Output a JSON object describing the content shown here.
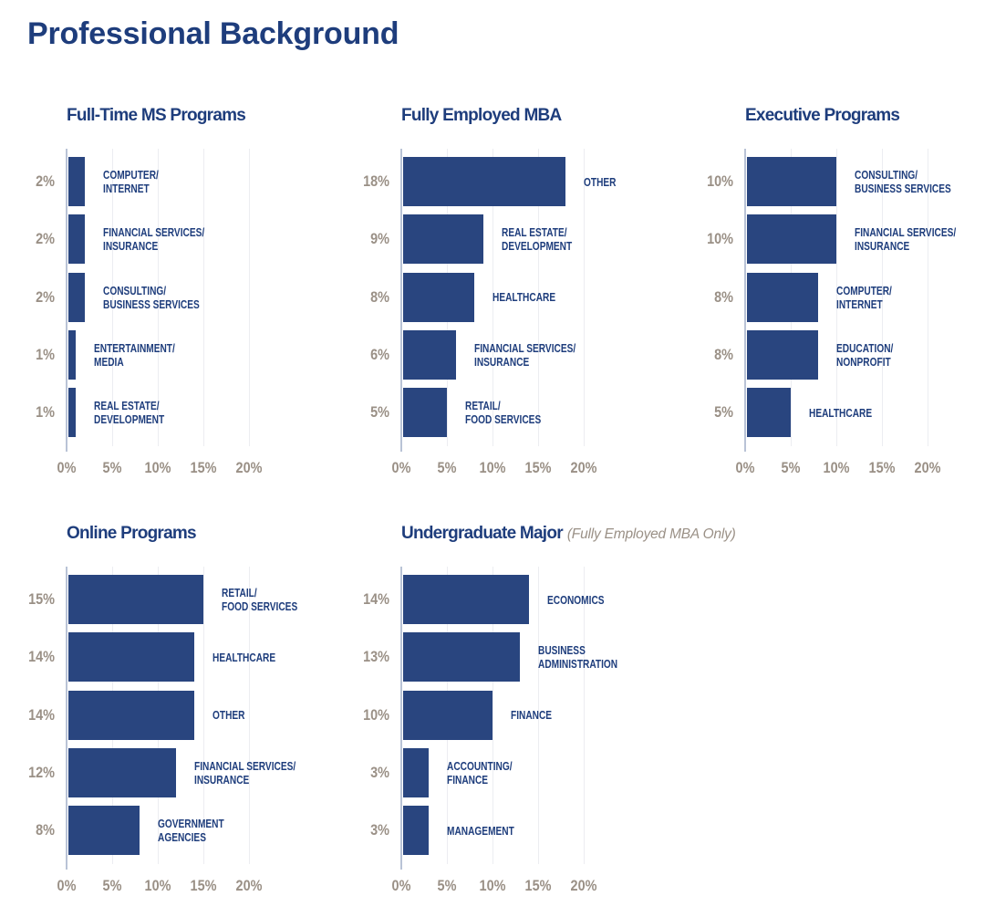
{
  "page_title": "Professional Background",
  "colors": {
    "bar_navy": "#29457f",
    "heading_blue": "#1e3d7c",
    "label_taupe": "#9a9086",
    "axis_line": "#b9c3d6",
    "gridline": "#ecedf1"
  },
  "chart_data": [
    {
      "type": "bar",
      "orientation": "horizontal",
      "title": "Full-Time MS Programs",
      "subtitle": "",
      "categories": [
        [
          "COMPUTER/",
          "INTERNET"
        ],
        [
          "FINANCIAL SERVICES/",
          "INSURANCE"
        ],
        [
          "CONSULTING/",
          "BUSINESS SERVICES"
        ],
        [
          "ENTERTAINMENT/",
          "MEDIA"
        ],
        [
          "REAL ESTATE/",
          "DEVELOPMENT"
        ]
      ],
      "values": [
        2,
        2,
        2,
        1,
        1
      ],
      "value_labels": [
        "2%",
        "2%",
        "2%",
        "1%",
        "1%"
      ],
      "xlim": [
        0,
        20
      ],
      "x_tick_labels": [
        "0%",
        "5%",
        "10%",
        "15%",
        "20%"
      ],
      "grid": true
    },
    {
      "type": "bar",
      "orientation": "horizontal",
      "title": "Fully Employed MBA",
      "subtitle": "",
      "categories": [
        [
          "OTHER"
        ],
        [
          "REAL ESTATE/",
          "DEVELOPMENT"
        ],
        [
          "HEALTHCARE"
        ],
        [
          "FINANCIAL SERVICES/",
          "INSURANCE"
        ],
        [
          "RETAIL/",
          "FOOD SERVICES"
        ]
      ],
      "values": [
        18,
        9,
        8,
        6,
        5
      ],
      "value_labels": [
        "18%",
        "9%",
        "8%",
        "6%",
        "5%"
      ],
      "xlim": [
        0,
        20
      ],
      "x_tick_labels": [
        "0%",
        "5%",
        "10%",
        "15%",
        "20%"
      ],
      "grid": true
    },
    {
      "type": "bar",
      "orientation": "horizontal",
      "title": "Executive Programs",
      "subtitle": "",
      "categories": [
        [
          "CONSULTING/",
          "BUSINESS SERVICES"
        ],
        [
          "FINANCIAL SERVICES/",
          "INSURANCE"
        ],
        [
          "COMPUTER/",
          "INTERNET"
        ],
        [
          "EDUCATION/",
          "NONPROFIT"
        ],
        [
          "HEALTHCARE"
        ]
      ],
      "values": [
        10,
        10,
        8,
        8,
        5
      ],
      "value_labels": [
        "10%",
        "10%",
        "8%",
        "8%",
        "5%"
      ],
      "xlim": [
        0,
        20
      ],
      "x_tick_labels": [
        "0%",
        "5%",
        "10%",
        "15%",
        "20%"
      ],
      "grid": true
    },
    {
      "type": "bar",
      "orientation": "horizontal",
      "title": "Online Programs",
      "subtitle": "",
      "categories": [
        [
          "RETAIL/",
          "FOOD SERVICES"
        ],
        [
          "HEALTHCARE"
        ],
        [
          "OTHER"
        ],
        [
          "FINANCIAL SERVICES/",
          "INSURANCE"
        ],
        [
          "GOVERNMENT",
          "AGENCIES"
        ]
      ],
      "values": [
        15,
        14,
        14,
        12,
        8
      ],
      "value_labels": [
        "15%",
        "14%",
        "14%",
        "12%",
        "8%"
      ],
      "xlim": [
        0,
        20
      ],
      "x_tick_labels": [
        "0%",
        "5%",
        "10%",
        "15%",
        "20%"
      ],
      "grid": true
    },
    {
      "type": "bar",
      "orientation": "horizontal",
      "title": "Undergraduate Major",
      "subtitle": "(Fully Employed MBA Only)",
      "categories": [
        [
          "ECONOMICS"
        ],
        [
          "BUSINESS",
          "ADMINISTRATION"
        ],
        [
          "FINANCE"
        ],
        [
          "ACCOUNTING/",
          "FINANCE"
        ],
        [
          "MANAGEMENT"
        ]
      ],
      "values": [
        14,
        13,
        10,
        3,
        3
      ],
      "value_labels": [
        "14%",
        "13%",
        "10%",
        "3%",
        "3%"
      ],
      "xlim": [
        0,
        20
      ],
      "x_tick_labels": [
        "0%",
        "5%",
        "10%",
        "15%",
        "20%"
      ],
      "grid": true
    }
  ]
}
